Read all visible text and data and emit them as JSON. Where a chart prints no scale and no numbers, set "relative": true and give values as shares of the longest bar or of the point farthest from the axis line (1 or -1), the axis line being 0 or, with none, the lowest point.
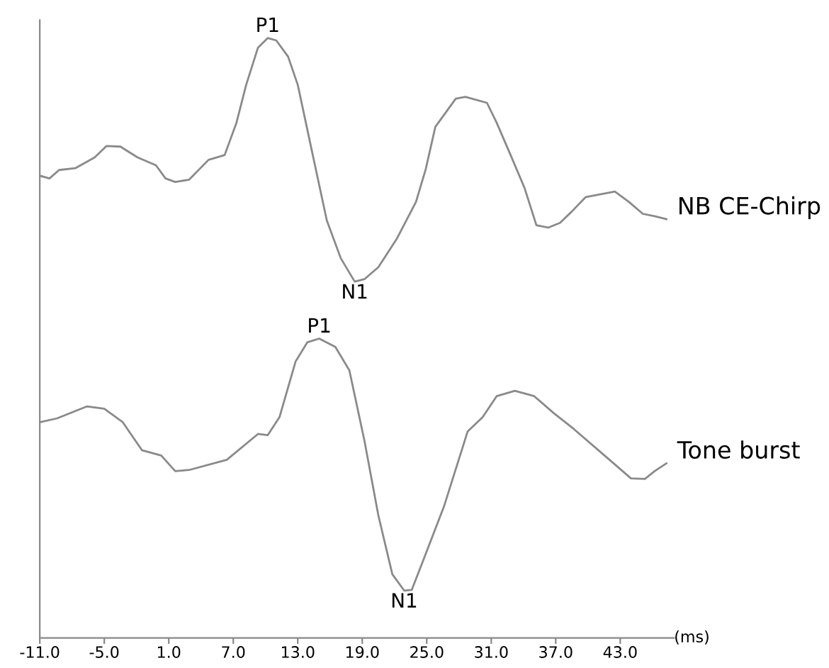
{
  "chart_data": {
    "type": "line",
    "relative": true,
    "xlabel": "(ms)",
    "xlim": [
      -11,
      48
    ],
    "xticks": [
      {
        "value": -11,
        "label": "-11.0"
      },
      {
        "value": -5,
        "label": "-5.0"
      },
      {
        "value": 1,
        "label": "1.0"
      },
      {
        "value": 7,
        "label": "7.0"
      },
      {
        "value": 13,
        "label": "13.0"
      },
      {
        "value": 19,
        "label": "19.0"
      },
      {
        "value": 25,
        "label": "25.0"
      },
      {
        "value": 31,
        "label": "31.0"
      },
      {
        "value": 37,
        "label": "37.0"
      },
      {
        "value": 43,
        "label": "43.0"
      }
    ],
    "grid": false,
    "legend": false,
    "marker": "none",
    "line_style": "solid",
    "series": [
      {
        "name": "NB CE-Chirp",
        "color": "#8a8a8a",
        "x": [
          -10.9,
          -10.1,
          -9.2,
          -7.7,
          -5.9,
          -4.8,
          -3.5,
          -1.9,
          -0.2,
          0.7,
          1.6,
          2.9,
          4.7,
          5.1,
          6.2,
          7.3,
          8.2,
          9.3,
          10.2,
          11.0,
          12.1,
          13.0,
          14.3,
          15.7,
          17.0,
          18.3,
          19.2,
          20.5,
          22.2,
          24.0,
          24.9,
          25.8,
          27.7,
          28.6,
          30.6,
          31.5,
          32.8,
          34.1,
          35.2,
          36.3,
          37.4,
          38.5,
          39.8,
          42.5,
          43.8,
          45.1,
          46.2,
          47.3
        ],
        "values": [
          0.77,
          0.766,
          0.78,
          0.783,
          0.801,
          0.82,
          0.819,
          0.801,
          0.788,
          0.766,
          0.76,
          0.764,
          0.797,
          0.799,
          0.805,
          0.859,
          0.922,
          0.984,
          1.0,
          0.996,
          0.969,
          0.922,
          0.813,
          0.696,
          0.633,
          0.594,
          0.598,
          0.618,
          0.665,
          0.727,
          0.781,
          0.852,
          0.899,
          0.902,
          0.892,
          0.859,
          0.805,
          0.75,
          0.688,
          0.684,
          0.692,
          0.711,
          0.735,
          0.744,
          0.727,
          0.707,
          0.703,
          0.698
        ]
      },
      {
        "name": "Tone burst",
        "color": "#8a8a8a",
        "x": [
          -10.9,
          -9.4,
          -6.6,
          -5.0,
          -3.3,
          -1.5,
          0.3,
          1.6,
          2.9,
          6.4,
          9.3,
          10.2,
          11.3,
          12.8,
          13.9,
          15.0,
          16.5,
          17.8,
          19.2,
          20.5,
          21.8,
          22.9,
          23.6,
          24.6,
          26.6,
          28.8,
          30.2,
          31.5,
          33.2,
          35.0,
          36.8,
          38.7,
          42.0,
          44.0,
          45.3,
          46.2,
          47.3
        ],
        "values": [
          0.36,
          0.366,
          0.386,
          0.382,
          0.36,
          0.313,
          0.304,
          0.278,
          0.28,
          0.297,
          0.34,
          0.338,
          0.368,
          0.461,
          0.493,
          0.499,
          0.485,
          0.446,
          0.329,
          0.204,
          0.106,
          0.079,
          0.08,
          0.126,
          0.219,
          0.344,
          0.368,
          0.403,
          0.412,
          0.403,
          0.375,
          0.348,
          0.297,
          0.266,
          0.265,
          0.278,
          0.291
        ]
      }
    ],
    "annotations": [
      {
        "text": "P1",
        "x": 10.2,
        "y": 1.0
      },
      {
        "text": "N1",
        "x": 18.3,
        "y": 0.594
      },
      {
        "text": "P1",
        "x": 15.0,
        "y": 0.499
      },
      {
        "text": "N1",
        "x": 22.9,
        "y": 0.079
      }
    ]
  }
}
